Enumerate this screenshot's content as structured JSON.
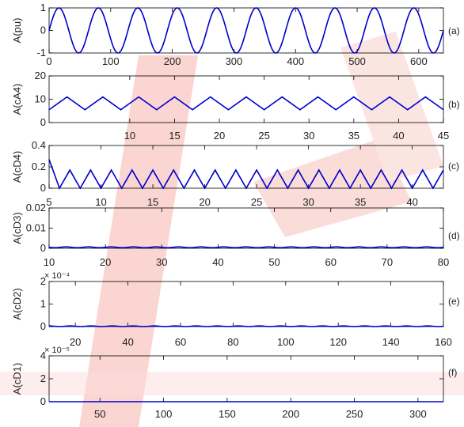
{
  "colors": {
    "line": "#0000cc",
    "axis": "#000000",
    "watermark": "#f4a7a0"
  },
  "chart_data": [
    {
      "type": "line",
      "tag": "(a)",
      "ylabel": "A(pu)",
      "xlim": [
        0,
        640
      ],
      "ylim": [
        -1,
        1
      ],
      "xticks": [
        "0",
        "100",
        "200",
        "300",
        "400",
        "500",
        "600"
      ],
      "xtick_values": [
        0,
        100,
        200,
        300,
        400,
        500,
        600
      ],
      "yticks": [
        "-1",
        "0",
        "1"
      ],
      "ytick_values": [
        -1,
        0,
        1
      ],
      "xticks_position": "bottom",
      "signal": {
        "kind": "sine",
        "period": 64,
        "amplitude": 1,
        "offset": 0,
        "phase": 0
      }
    },
    {
      "type": "line",
      "tag": "(b)",
      "ylabel": "A(cA4)",
      "xlim": [
        1,
        45
      ],
      "ylim": [
        0,
        20
      ],
      "xticks": [
        "10",
        "15",
        "20",
        "25",
        "30",
        "35",
        "40",
        "45"
      ],
      "xtick_values": [
        10,
        15,
        20,
        25,
        30,
        35,
        40,
        45
      ],
      "yticks": [
        "0",
        "10",
        "20"
      ],
      "ytick_values": [
        0,
        10,
        20
      ],
      "xticks_position": "bottom",
      "signal": {
        "kind": "triangle",
        "period": 4,
        "min": 5.5,
        "max": 11,
        "x0": 1,
        "start": "low"
      }
    },
    {
      "type": "line",
      "tag": "(c)",
      "ylabel": "A(cD4)",
      "xlim": [
        5,
        43
      ],
      "ylim": [
        0,
        0.4
      ],
      "xticks": [
        "5",
        "10",
        "15",
        "20",
        "25",
        "30",
        "35",
        "40"
      ],
      "xtick_values": [
        5,
        10,
        15,
        20,
        25,
        30,
        35,
        40
      ],
      "yticks": [
        "0",
        "0.2",
        "0.4"
      ],
      "ytick_values": [
        0,
        0.2,
        0.4
      ],
      "xticks_position": "bottom",
      "signal": {
        "kind": "triangle",
        "period": 2,
        "min": 0,
        "max": 0.17,
        "x0": 5,
        "start": "high",
        "initial": 0.27
      }
    },
    {
      "type": "line",
      "tag": "(d)",
      "ylabel": "A(cD3)",
      "xlim": [
        10,
        80
      ],
      "ylim": [
        0,
        0.02
      ],
      "xticks": [
        "10",
        "20",
        "30",
        "40",
        "50",
        "60",
        "70",
        "80"
      ],
      "xtick_values": [
        10,
        20,
        30,
        40,
        50,
        60,
        70,
        80
      ],
      "yticks": [
        "0",
        "0.01",
        "0.02"
      ],
      "ytick_values": [
        0,
        0.01,
        0.02
      ],
      "xticks_position": "bottom",
      "signal": {
        "kind": "sine",
        "period": 4,
        "amplitude": 0.0002,
        "offset": 0.0005,
        "phase": 0
      }
    },
    {
      "type": "line",
      "tag": "(e)",
      "ylabel": "A(cD2)",
      "xlim": [
        10,
        160
      ],
      "ylim": [
        0,
        0.0002
      ],
      "xticks": [
        "20",
        "40",
        "60",
        "80",
        "100",
        "120",
        "140",
        "160"
      ],
      "xtick_values": [
        20,
        40,
        60,
        80,
        100,
        120,
        140,
        160
      ],
      "yticks": [
        "0",
        "1",
        "2"
      ],
      "ytick_values": [
        0,
        0.0001,
        0.0002
      ],
      "exponent": "× 10⁻⁴",
      "xticks_position": "bottom",
      "signal": {
        "kind": "sine",
        "period": 8,
        "amplitude": 1.5e-06,
        "offset": 1.5e-06,
        "phase": 0
      }
    },
    {
      "type": "line",
      "tag": "(f)",
      "ylabel": "A(cD1)",
      "xlim": [
        10,
        320
      ],
      "ylim": [
        0,
        4e-05
      ],
      "xticks": [
        "50",
        "100",
        "150",
        "200",
        "250",
        "300"
      ],
      "xtick_values": [
        50,
        100,
        150,
        200,
        250,
        300
      ],
      "yticks": [
        "0",
        "2",
        "4"
      ],
      "ytick_values": [
        0,
        2e-05,
        4e-05
      ],
      "exponent": "× 10⁻⁵",
      "xticks_position": "bottom",
      "signal": {
        "kind": "flat",
        "value": 0
      }
    }
  ]
}
